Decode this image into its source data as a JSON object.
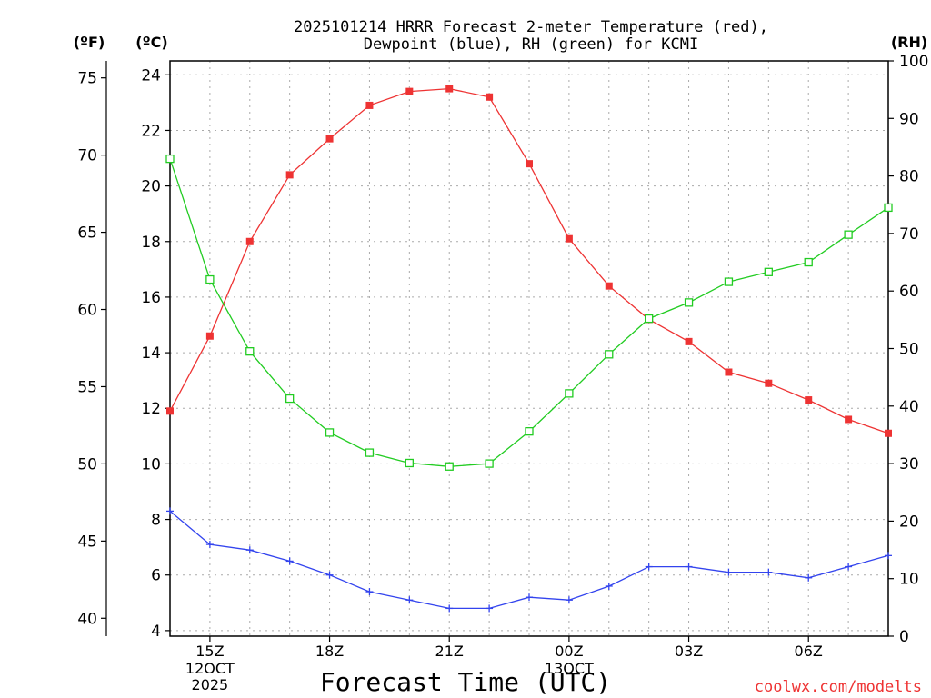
{
  "chart_data": {
    "type": "line",
    "title_lines": [
      "2025101214 HRRR Forecast 2-meter Temperature (red),",
      "Dewpoint (blue), RH (green) for KCMI"
    ],
    "xlabel": "Forecast Time (UTC)",
    "credit": "coolwx.com/modelts",
    "unit_labels": {
      "fahrenheit": "(ºF)",
      "celsius": "(ºC)",
      "rh": "(RH)"
    },
    "x_hours": [
      14,
      15,
      16,
      17,
      18,
      19,
      20,
      21,
      22,
      23,
      24,
      25,
      26,
      27,
      28,
      29,
      30,
      31,
      32
    ],
    "x_ticks": [
      {
        "hour": 15,
        "label": "15Z",
        "sub": [
          "12OCT",
          "2025"
        ]
      },
      {
        "hour": 18,
        "label": "18Z",
        "sub": []
      },
      {
        "hour": 21,
        "label": "21Z",
        "sub": []
      },
      {
        "hour": 24,
        "label": "00Z",
        "sub": [
          "13OCT"
        ]
      },
      {
        "hour": 27,
        "label": "03Z",
        "sub": []
      },
      {
        "hour": 30,
        "label": "06Z",
        "sub": []
      }
    ],
    "celsius_axis": {
      "range": [
        3.8,
        24.5
      ],
      "ticks": [
        4,
        6,
        8,
        10,
        12,
        14,
        16,
        18,
        20,
        22,
        24
      ]
    },
    "fahrenheit_axis": {
      "ticks": [
        40,
        45,
        50,
        55,
        60,
        65,
        70,
        75
      ]
    },
    "rh_axis": {
      "range": [
        0,
        100
      ],
      "ticks": [
        0,
        10,
        20,
        30,
        40,
        50,
        60,
        70,
        80,
        90,
        100
      ]
    },
    "series": [
      {
        "name": "2-meter Temperature",
        "units": "C",
        "axis": "celsius",
        "color": "#ee3333",
        "marker": "filled-square",
        "values": [
          11.9,
          14.6,
          18.0,
          20.4,
          21.7,
          22.9,
          23.4,
          23.5,
          23.2,
          20.8,
          18.1,
          16.4,
          15.2,
          14.4,
          13.3,
          12.9,
          12.3,
          11.6,
          11.1
        ]
      },
      {
        "name": "Dewpoint",
        "units": "C",
        "axis": "celsius",
        "color": "#3344ee",
        "marker": "plus",
        "values": [
          8.3,
          7.1,
          6.9,
          6.5,
          6.0,
          5.4,
          5.1,
          4.8,
          4.8,
          5.2,
          5.1,
          5.6,
          6.3,
          6.3,
          6.1,
          6.1,
          5.9,
          6.3,
          6.7
        ]
      },
      {
        "name": "RH",
        "units": "%",
        "axis": "rh",
        "color": "#22cc22",
        "marker": "open-square",
        "values": [
          83,
          62,
          49.5,
          41.3,
          35.4,
          31.9,
          30.1,
          29.5,
          30.0,
          35.6,
          42.2,
          49.0,
          55.2,
          58.0,
          61.6,
          63.3,
          65.0,
          69.8,
          74.5
        ]
      }
    ]
  }
}
